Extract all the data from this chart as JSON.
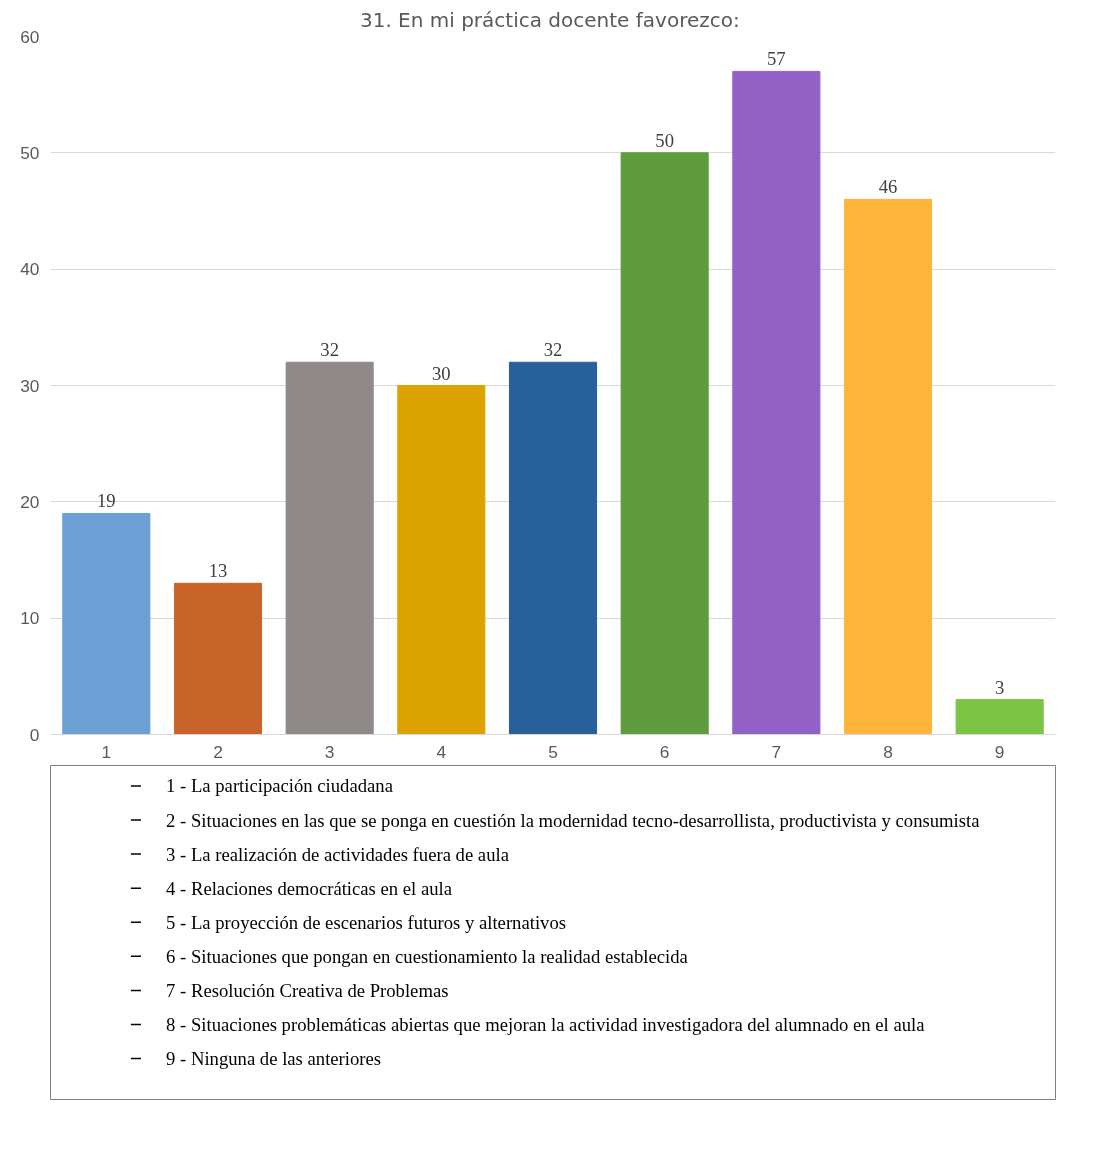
{
  "chart_data": {
    "type": "bar",
    "title": "31. En mi práctica docente  favorezco:",
    "categories": [
      "1",
      "2",
      "3",
      "4",
      "5",
      "6",
      "7",
      "8",
      "9"
    ],
    "values": [
      19,
      13,
      32,
      30,
      32,
      50,
      57,
      46,
      3
    ],
    "colors": [
      "#6c9fd4",
      "#c8642a",
      "#8f8a88",
      "#dca300",
      "#28609c",
      "#5f9c3e",
      "#9360c6",
      "#ffb43c",
      "#7cc444"
    ],
    "ylim": [
      0,
      60
    ],
    "yticks": [
      0,
      10,
      20,
      30,
      40,
      50,
      60
    ],
    "grid": "y",
    "data_labels": true,
    "annotations": [
      "1 - La participación ciudadana",
      "2 - Situaciones en las que se ponga en cuestión la modernidad tecno-desarrollista, productivista y consumista",
      "3 - La realización de actividades fuera de aula",
      "4 - Relaciones democráticas en el aula",
      "5 - La proyección de escenarios futuros y alternativos",
      "6 - Situaciones que pongan en cuestionamiento la realidad establecida",
      "7 - Resolución Creativa de Problemas",
      "8 - Situaciones problemáticas abiertas que mejoran la actividad investigadora del alumnado en el aula",
      "9 - Ninguna de las anteriores"
    ]
  }
}
